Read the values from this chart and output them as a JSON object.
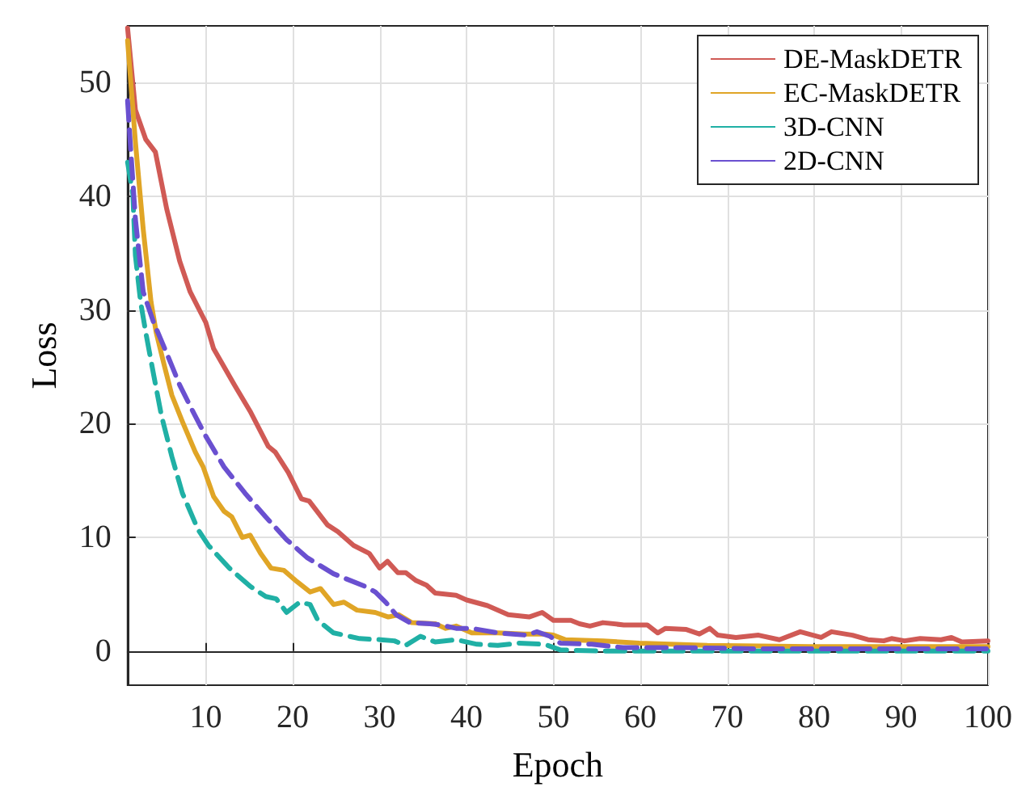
{
  "chart_data": {
    "type": "line",
    "xlabel": "Epoch",
    "ylabel": "Loss",
    "xlim": [
      1,
      100
    ],
    "xticks": [
      10,
      20,
      30,
      40,
      50,
      60,
      70,
      80,
      90,
      100
    ],
    "ylim": [
      -3,
      55
    ],
    "yticks": [
      0,
      10,
      20,
      30,
      40,
      50
    ],
    "grid": true,
    "legend": "top right",
    "marker": "none",
    "series": [
      {
        "name": "DE-MaskDETR",
        "color": "#d05a55",
        "line_style": "solid",
        "x": [
          1,
          1.9,
          3.1,
          4.2,
          5.5,
          7,
          8.2,
          10,
          10.9,
          13.3,
          15.1,
          17.2,
          18,
          19.5,
          21,
          21.9,
          24,
          25.2,
          27,
          28.8,
          30,
          30.9,
          32.1,
          33,
          34.2,
          35.4,
          36.4,
          38.8,
          40,
          42.4,
          44.8,
          47.2,
          48.7,
          50,
          52,
          53,
          54.2,
          55.7,
          58.1,
          60.8,
          62,
          62.9,
          65.3,
          66.8,
          68,
          68.9,
          71,
          73.6,
          76,
          78.4,
          80.8,
          82,
          84.4,
          86.2,
          88,
          88.9,
          90.4,
          92.2,
          94.6,
          95.8,
          97,
          100
        ],
        "values": [
          54.8,
          47.6,
          45,
          43.9,
          38.9,
          34.3,
          31.6,
          28.9,
          26.6,
          23.4,
          21.1,
          18,
          17.5,
          15.7,
          13.4,
          13.2,
          11.1,
          10.5,
          9.3,
          8.6,
          7.3,
          7.9,
          6.9,
          6.9,
          6.2,
          5.8,
          5.1,
          4.9,
          4.5,
          4.0,
          3.2,
          3.0,
          3.4,
          2.7,
          2.7,
          2.4,
          2.2,
          2.5,
          2.3,
          2.3,
          1.6,
          2.0,
          1.9,
          1.5,
          2.0,
          1.4,
          1.2,
          1.4,
          1.0,
          1.7,
          1.2,
          1.7,
          1.4,
          1.0,
          0.9,
          1.1,
          0.9,
          1.1,
          1.0,
          1.2,
          0.8,
          0.9
        ]
      },
      {
        "name": "EC-MaskDETR",
        "color": "#e0a526",
        "line_style": "solid",
        "x": [
          1,
          1.9,
          2.8,
          3.7,
          4.3,
          5.2,
          6.1,
          7.3,
          8.8,
          9.7,
          10.9,
          12.1,
          13,
          14.2,
          15.1,
          16.3,
          17.5,
          19,
          20.5,
          22,
          23.2,
          24.7,
          25.9,
          27.4,
          29.5,
          31,
          32.2,
          33.7,
          36.4,
          37.6,
          38.8,
          40.6,
          43.6,
          46.6,
          49,
          50,
          51.4,
          55.7,
          59.9,
          67.7,
          79.7,
          91.7,
          100
        ],
        "values": [
          53.7,
          44.8,
          37.1,
          30.7,
          28,
          25.2,
          22.5,
          20.2,
          17.5,
          16.2,
          13.6,
          12.3,
          11.8,
          10,
          10.2,
          8.6,
          7.3,
          7.1,
          6.1,
          5.2,
          5.5,
          4.1,
          4.3,
          3.6,
          3.4,
          3.0,
          3.2,
          2.5,
          2.4,
          2.0,
          2.2,
          1.6,
          1.6,
          1.5,
          1.5,
          1.4,
          1.0,
          0.9,
          0.7,
          0.5,
          0.4,
          0.4,
          0.4
        ]
      },
      {
        "name": "3D-CNN",
        "color": "#20b0a5",
        "line_style": "dashed",
        "x": [
          1,
          1.6,
          1.9,
          2.5,
          3.1,
          4,
          4.9,
          6.1,
          7.3,
          9.1,
          10.3,
          12.7,
          15.1,
          16.9,
          18.1,
          19.3,
          20.8,
          22,
          22.9,
          24.7,
          27.7,
          30.1,
          31.7,
          33,
          34.7,
          36.4,
          38.8,
          41.2,
          43.6,
          46,
          49,
          50.8,
          55.7,
          70,
          85,
          100
        ],
        "values": [
          43,
          40.2,
          34.8,
          30.7,
          28,
          24.3,
          20.7,
          17.1,
          13.9,
          10.7,
          9.3,
          7.3,
          5.7,
          4.8,
          4.6,
          3.4,
          4.3,
          4.1,
          2.7,
          1.6,
          1.1,
          1.0,
          0.9,
          0.5,
          1.3,
          0.8,
          1.0,
          0.6,
          0.5,
          0.7,
          0.6,
          0.1,
          0,
          0,
          0,
          0
        ]
      },
      {
        "name": "2D-CNN",
        "color": "#6a50d0",
        "line_style": "dashed",
        "x": [
          1,
          1.3,
          1.9,
          2.8,
          4,
          5.5,
          7,
          8.5,
          10,
          12.1,
          14.5,
          16.9,
          19.3,
          21.7,
          24.7,
          28.3,
          29.5,
          30.7,
          31.9,
          33.5,
          35.8,
          37,
          38.8,
          40.6,
          43.6,
          46.9,
          48.1,
          49.6,
          50.8,
          54.4,
          58,
          64.6,
          73.6,
          85.6,
          100
        ],
        "values": [
          48.4,
          44.8,
          38,
          31.6,
          28.9,
          26.2,
          23.4,
          21.1,
          18.9,
          16.2,
          13.9,
          11.8,
          9.8,
          8.2,
          6.8,
          5.7,
          5.2,
          4.3,
          3.2,
          2.5,
          2.4,
          2.3,
          2.0,
          2.0,
          1.6,
          1.4,
          1.7,
          1.3,
          0.7,
          0.6,
          0.3,
          0.3,
          0.2,
          0.2,
          0.2
        ]
      }
    ]
  }
}
